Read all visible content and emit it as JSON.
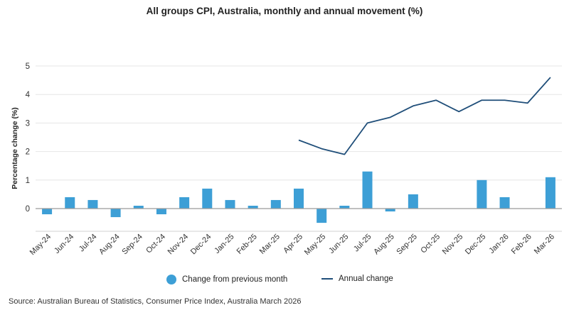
{
  "title": "All groups CPI, Australia, monthly and annual movement (%)",
  "source": "Source: Australian Bureau of Statistics, Consumer Price Index, Australia March 2026",
  "legend": {
    "bar_label": "Change from previous month",
    "line_label": "Annual change"
  },
  "colors": {
    "bar": "#3d9fd6",
    "line": "#1f4e79",
    "grid": "#e6e6e6",
    "axis": "#9a9a9a"
  },
  "chart_data": {
    "type": "bar",
    "title": "All groups CPI, Australia, monthly and annual movement (%)",
    "xlabel": "",
    "ylabel": "Percentage change (%)",
    "ylim": [
      -0.7,
      5
    ],
    "yticks": [
      0,
      1,
      2,
      3,
      4,
      5
    ],
    "grid": true,
    "legend_position": "bottom",
    "categories": [
      "May-24",
      "Jun-24",
      "Jul-24",
      "Aug-24",
      "Sep-24",
      "Oct-24",
      "Nov-24",
      "Dec-24",
      "Jan-25",
      "Feb-25",
      "Mar-25",
      "Apr-25",
      "May-25",
      "Jun-25",
      "Jul-25",
      "Aug-25",
      "Sep-25",
      "Oct-25",
      "Nov-25",
      "Dec-25",
      "Jan-26",
      "Feb-26",
      "Mar-26"
    ],
    "series": [
      {
        "name": "Change from previous month",
        "type": "bar",
        "values": [
          -0.2,
          0.4,
          0.3,
          -0.3,
          0.1,
          -0.2,
          0.4,
          0.7,
          0.3,
          0.1,
          0.3,
          0.7,
          -0.5,
          0.1,
          1.3,
          -0.1,
          0.5,
          0.0,
          0.0,
          1.0,
          0.4,
          0.0,
          1.1
        ]
      },
      {
        "name": "Annual change",
        "type": "line",
        "values": [
          null,
          null,
          null,
          null,
          null,
          null,
          null,
          null,
          null,
          null,
          null,
          2.4,
          2.1,
          1.9,
          3.0,
          3.2,
          3.6,
          3.8,
          3.4,
          3.8,
          3.8,
          3.7,
          4.6
        ]
      }
    ]
  }
}
